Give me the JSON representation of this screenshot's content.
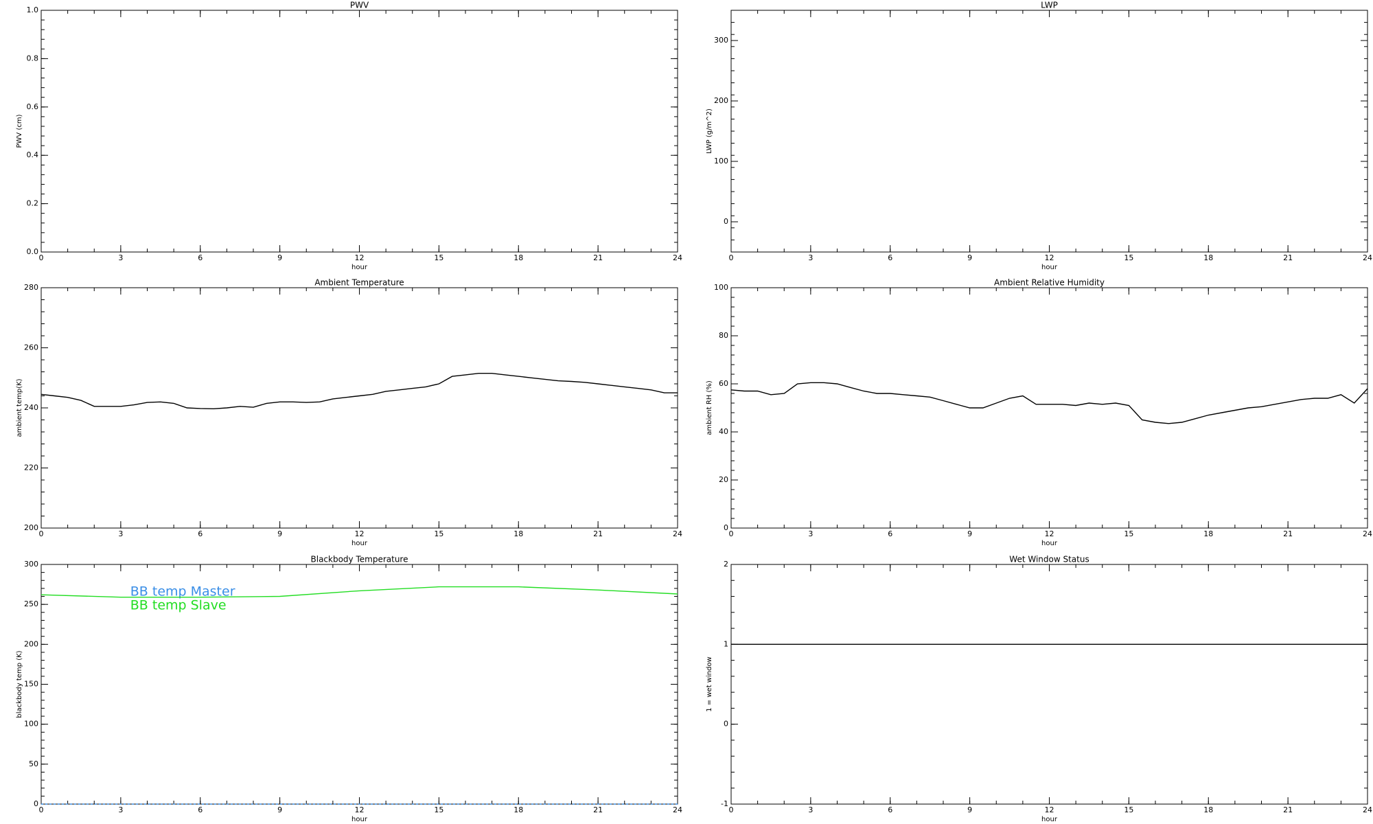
{
  "chart_data": [
    {
      "type": "line",
      "title": "PWV",
      "ylabel": "PWV (cm)",
      "xlabel": "hour",
      "xlim": [
        0,
        24
      ],
      "xticks": [
        0,
        3,
        6,
        9,
        12,
        15,
        18,
        21,
        24
      ],
      "ylim": [
        0,
        1
      ],
      "yticks": [
        {
          "value": 0,
          "label": "0.0"
        },
        0.2,
        0.4,
        0.6,
        0.8,
        {
          "value": 1,
          "label": "1.0"
        }
      ],
      "x": [],
      "values": [],
      "color": "#000000"
    },
    {
      "type": "line",
      "title": "LWP",
      "ylabel": "LWP (g/m^2)",
      "xlabel": "hour",
      "xlim": [
        0,
        24
      ],
      "xticks": [
        0,
        3,
        6,
        9,
        12,
        15,
        18,
        21,
        24
      ],
      "ylim": [
        -50,
        350
      ],
      "yticks": [
        0,
        100,
        200,
        300
      ],
      "x": [],
      "values": [],
      "color": "#000000"
    },
    {
      "type": "line",
      "title": "Ambient Temperature",
      "ylabel": "ambient temp(K)",
      "xlabel": "hour",
      "xlim": [
        0,
        24
      ],
      "xticks": [
        0,
        3,
        6,
        9,
        12,
        15,
        18,
        21,
        24
      ],
      "ylim": [
        200,
        280
      ],
      "yticks": [
        200,
        220,
        240,
        260,
        280
      ],
      "x": [
        0,
        0.5,
        1,
        1.5,
        2,
        2.5,
        3,
        3.5,
        4,
        4.5,
        5,
        5.5,
        6,
        6.5,
        7,
        7.5,
        8,
        8.5,
        9,
        9.5,
        10,
        10.5,
        11,
        11.5,
        12,
        12.5,
        13,
        13.5,
        14,
        14.5,
        15,
        15.5,
        16,
        16.5,
        17,
        17.5,
        18,
        18.5,
        19,
        19.5,
        20,
        20.5,
        21,
        21.5,
        22,
        22.5,
        23,
        23.5,
        24
      ],
      "values": [
        244.5,
        244,
        243.5,
        242.5,
        240.5,
        240.5,
        240.5,
        241,
        241.8,
        242,
        241.5,
        240,
        239.8,
        239.7,
        240,
        240.5,
        240.2,
        241.5,
        242,
        242,
        241.8,
        242,
        243,
        243.5,
        244,
        244.5,
        245.5,
        246,
        246.5,
        247,
        248,
        250.5,
        251,
        251.5,
        251.5,
        251,
        250.5,
        250,
        249.5,
        249,
        248.8,
        248.5,
        248,
        247.5,
        247,
        246.5,
        246,
        245,
        245
      ],
      "color": "#000000"
    },
    {
      "type": "line",
      "title": "Ambient Relative Humidity",
      "ylabel": "ambient RH (%)",
      "xlabel": "hour",
      "xlim": [
        0,
        24
      ],
      "xticks": [
        0,
        3,
        6,
        9,
        12,
        15,
        18,
        21,
        24
      ],
      "ylim": [
        0,
        100
      ],
      "yticks": [
        0,
        20,
        40,
        60,
        80,
        100
      ],
      "x": [
        0,
        0.5,
        1,
        1.5,
        2,
        2.5,
        3,
        3.5,
        4,
        4.5,
        5,
        5.5,
        6,
        6.5,
        7,
        7.5,
        8,
        8.5,
        9,
        9.5,
        10,
        10.5,
        11,
        11.5,
        12,
        12.5,
        13,
        13.5,
        14,
        14.5,
        15,
        15.5,
        16,
        16.5,
        17,
        17.5,
        18,
        18.5,
        19,
        19.5,
        20,
        20.5,
        21,
        21.5,
        22,
        22.5,
        23,
        23.5,
        24
      ],
      "values": [
        57.5,
        57,
        57,
        55.5,
        56,
        60,
        60.5,
        60.5,
        60,
        58.5,
        57,
        56,
        56,
        55.5,
        55,
        54.5,
        53,
        51.5,
        50,
        50,
        52,
        54,
        55,
        51.5,
        51.5,
        51.5,
        51,
        52,
        51.5,
        52,
        51,
        45,
        44,
        43.5,
        44,
        45.5,
        47,
        48,
        49,
        50,
        50.5,
        51.5,
        52.5,
        53.5,
        54,
        54,
        55.5,
        52,
        58
      ],
      "color": "#000000"
    },
    {
      "type": "multiline",
      "title": "Blackbody Temperature",
      "ylabel": "blackbody temp (K)",
      "xlabel": "hour",
      "xlim": [
        0,
        24
      ],
      "xticks": [
        0,
        3,
        6,
        9,
        12,
        15,
        18,
        21,
        24
      ],
      "ylim": [
        0,
        300
      ],
      "yticks": [
        0,
        50,
        100,
        150,
        200,
        250,
        300
      ],
      "x": [
        0,
        3,
        6,
        9,
        12,
        15,
        18,
        21,
        24
      ],
      "series": [
        {
          "name": "BB temp Master",
          "color": "#3a8ee6",
          "values": [
            0,
            0,
            0,
            0,
            0,
            0,
            0,
            0,
            0
          ]
        },
        {
          "name": "BB temp Slave",
          "color": "#22dd22",
          "values": [
            262,
            259,
            259,
            260,
            267,
            272,
            272,
            268,
            263
          ]
        }
      ]
    },
    {
      "type": "line",
      "title": "Wet Window Status",
      "ylabel": "1 = wet window",
      "xlabel": "hour",
      "xlim": [
        0,
        24
      ],
      "xticks": [
        0,
        3,
        6,
        9,
        12,
        15,
        18,
        21,
        24
      ],
      "ylim": [
        -1,
        2
      ],
      "yticks": [
        -1,
        0,
        1,
        2
      ],
      "x": [
        0,
        24
      ],
      "values": [
        1,
        1
      ],
      "color": "#000000"
    }
  ]
}
